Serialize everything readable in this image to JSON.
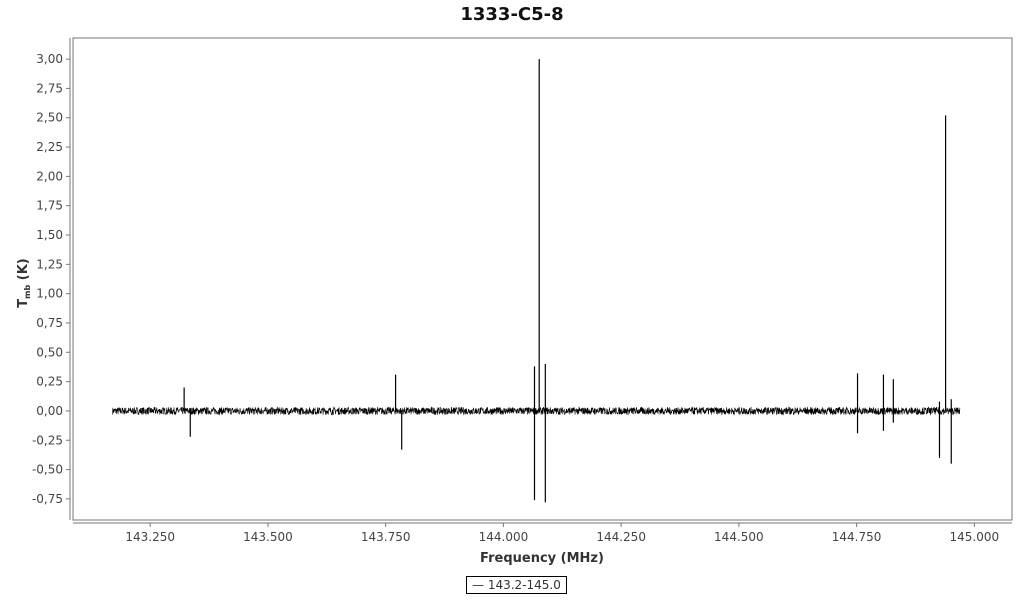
{
  "chart_data": {
    "type": "line",
    "title": "1333-C5-8",
    "xlabel": "Frequency (MHz)",
    "ylabel_main": "T",
    "ylabel_sub": "mb",
    "ylabel_unit": " (K)",
    "xlim": [
      143.086,
      145.08
    ],
    "ylim": [
      -0.93,
      3.18
    ],
    "x_ticks": [
      "143.250",
      "143.500",
      "143.750",
      "144.000",
      "144.250",
      "144.500",
      "144.750",
      "145.000"
    ],
    "x_tick_values": [
      143.25,
      143.5,
      143.75,
      144.0,
      144.25,
      144.5,
      144.75,
      145.0
    ],
    "y_ticks": [
      "-0,75",
      "-0,50",
      "-0,25",
      "0,00",
      "0,25",
      "0,50",
      "0,75",
      "1,00",
      "1,25",
      "1,50",
      "1,75",
      "2,00",
      "2,25",
      "2,50",
      "2,75",
      "3,00"
    ],
    "y_tick_values": [
      -0.75,
      -0.5,
      -0.25,
      0,
      0.25,
      0.5,
      0.75,
      1,
      1.25,
      1.5,
      1.75,
      2,
      2.25,
      2.5,
      2.75,
      3
    ],
    "grid": false,
    "legend_placement": "bottom-center",
    "series": [
      {
        "name": "143.2-145.0",
        "color": "#000000",
        "x_range": [
          143.17,
          144.97
        ],
        "noise_rms": 0.02,
        "spikes": [
          {
            "x": 143.322,
            "min": 0,
            "max": 0.2
          },
          {
            "x": 143.335,
            "min": -0.22,
            "max": 0
          },
          {
            "x": 143.771,
            "min": 0,
            "max": 0.31
          },
          {
            "x": 143.784,
            "min": -0.33,
            "max": 0
          },
          {
            "x": 144.066,
            "min": -0.76,
            "max": 0.38
          },
          {
            "x": 144.076,
            "min": 0,
            "max": 3.0
          },
          {
            "x": 144.089,
            "min": -0.78,
            "max": 0.4
          },
          {
            "x": 144.752,
            "min": -0.19,
            "max": 0.32
          },
          {
            "x": 144.807,
            "min": -0.17,
            "max": 0.31
          },
          {
            "x": 144.828,
            "min": -0.1,
            "max": 0.27
          },
          {
            "x": 144.926,
            "min": -0.4,
            "max": 0.08
          },
          {
            "x": 144.939,
            "min": 0,
            "max": 2.52
          },
          {
            "x": 144.951,
            "min": -0.45,
            "max": 0.1
          }
        ]
      }
    ]
  }
}
